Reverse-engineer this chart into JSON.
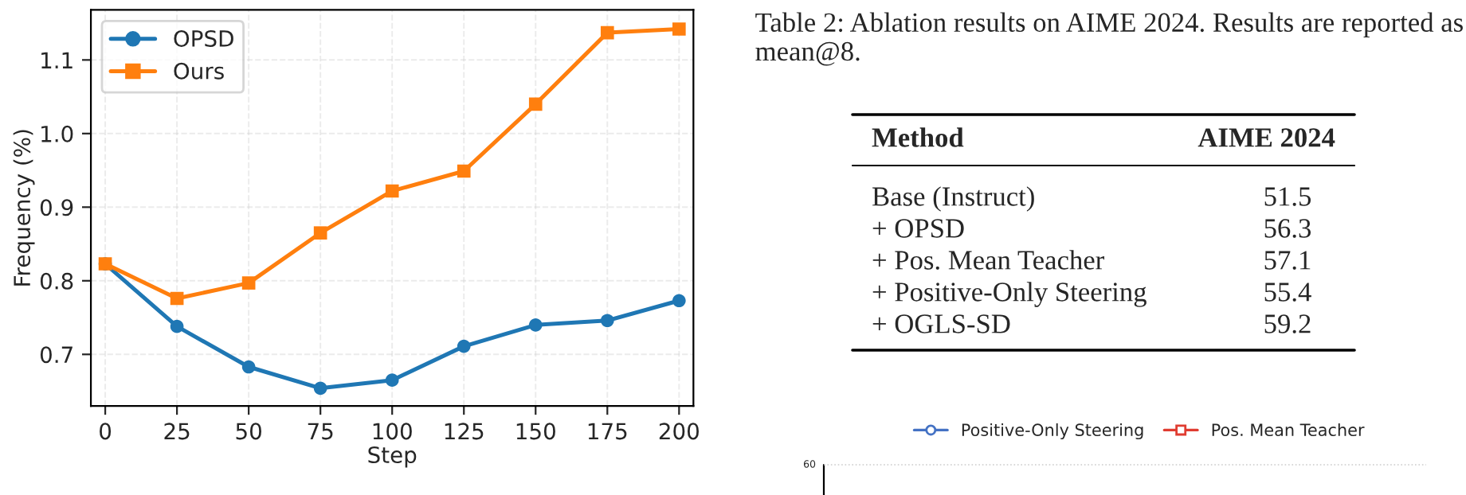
{
  "chart_data": [
    {
      "type": "line",
      "xlabel": "Step",
      "ylabel": "Frequency (%)",
      "x": [
        0,
        25,
        50,
        75,
        100,
        125,
        150,
        175,
        200
      ],
      "series": [
        {
          "name": "OPSD",
          "color": "#1f77b4",
          "marker": "circle",
          "values": [
            0.823,
            0.738,
            0.683,
            0.654,
            0.665,
            0.711,
            0.74,
            0.746,
            0.773
          ]
        },
        {
          "name": "Ours",
          "color": "#ff7f0e",
          "marker": "square",
          "values": [
            0.823,
            0.776,
            0.797,
            0.865,
            0.922,
            0.949,
            1.04,
            1.137,
            1.142
          ]
        }
      ],
      "xlim": [
        -5,
        205
      ],
      "xticks": [
        0,
        25,
        50,
        75,
        100,
        125,
        150,
        175,
        200
      ],
      "ylim": [
        0.63,
        1.168
      ],
      "yticks": [
        {
          "value": 0.7,
          "label": "0.7"
        },
        {
          "value": 0.8,
          "label": "0.8"
        },
        {
          "value": 0.9,
          "label": "0.9"
        },
        {
          "value": 1.0,
          "label": "1.0"
        },
        {
          "value": 1.1,
          "label": "1.1"
        }
      ],
      "grid": true,
      "legend": "top left",
      "line_style": "solid"
    },
    {
      "type": "other",
      "title": "Table 2: Ablation results on AIME 2024. Results are reported as mean@8.",
      "annotations": [
        "Method",
        "AIME 2024"
      ],
      "categories": [
        "Base (Instruct)",
        "+ OPSD",
        "+ Pos. Mean Teacher",
        "+ Positive-Only Steering",
        "+ OGLS-SD"
      ],
      "value_labels": [
        "51.5",
        "56.3",
        "57.1",
        "55.4",
        "59.2"
      ]
    },
    {
      "type": "other",
      "annotations": [
        "60"
      ],
      "series": [
        {
          "name": "Positive-Only Steering",
          "color": "#4472c4"
        },
        {
          "name": "Pos. Mean Teacher",
          "color": "#e03c31"
        }
      ]
    }
  ]
}
